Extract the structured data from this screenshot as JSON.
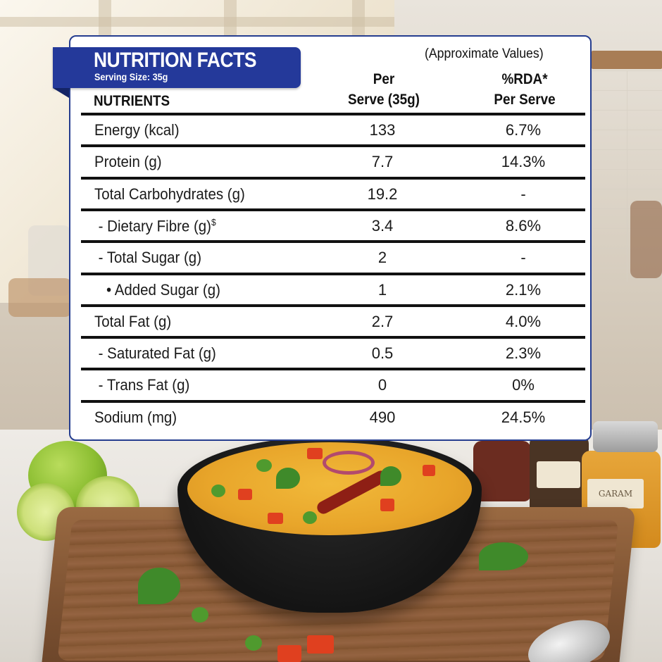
{
  "card": {
    "title": "NUTRITION FACTS",
    "serving_size": "Serving Size: 35g",
    "approx_note": "(Approximate Values)",
    "col_nutrients": "NUTRIENTS",
    "col_per_line1": "Per",
    "col_per_line2": "Serve (35g)",
    "col_rda_line1": "%RDA*",
    "col_rda_line2": "Per Serve",
    "rows": [
      {
        "name": "Energy (kcal)",
        "per_serve": "133",
        "rda": "6.7%"
      },
      {
        "name": "Protein (g)",
        "per_serve": "7.7",
        "rda": "14.3%"
      },
      {
        "name": "Total Carbohydrates (g)",
        "per_serve": "19.2",
        "rda": "-"
      },
      {
        "name": " - Dietary Fibre (g)",
        "sup": "$",
        "per_serve": "3.4",
        "rda": "8.6%"
      },
      {
        "name": " - Total Sugar (g)",
        "per_serve": "2",
        "rda": "-"
      },
      {
        "name": "   • Added Sugar (g)",
        "per_serve": "1",
        "rda": "2.1%"
      },
      {
        "name": "Total Fat (g)",
        "per_serve": "2.7",
        "rda": "4.0%"
      },
      {
        "name": " - Saturated Fat (g)",
        "per_serve": "0.5",
        "rda": "2.3%"
      },
      {
        "name": " - Trans Fat (g)",
        "per_serve": "0",
        "rda": "0%"
      },
      {
        "name": "Sodium (mg)",
        "per_serve": "490",
        "rda": "24.5%"
      }
    ]
  },
  "scene": {
    "jar_label": "GARAM",
    "colors": {
      "accent": "#24399a",
      "card_border": "#253d8f",
      "dal": "#e8a52a",
      "board": "#7d5232"
    },
    "icons": [
      "lime-icon",
      "cilantro-icon",
      "chili-icon",
      "spoon-icon",
      "spice-jar-icon",
      "bowl-icon"
    ]
  }
}
